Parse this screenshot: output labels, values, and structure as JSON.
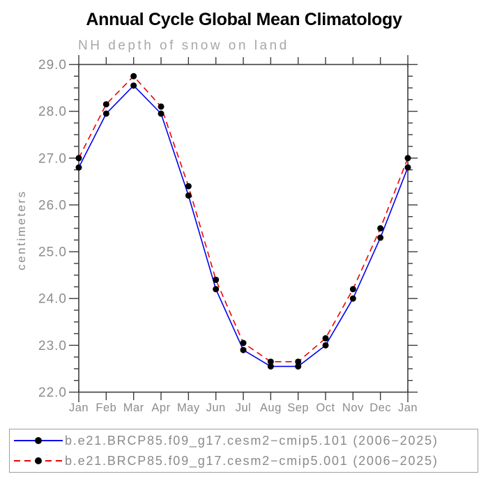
{
  "chart": {
    "title": "Annual Cycle Global Mean Climatology",
    "subtitle": "NH depth of snow on land",
    "ylabel": "centimeters"
  },
  "colors": {
    "background": "#ffffff",
    "axis": "#3c3c3c",
    "tick_label": "#8c8c8c",
    "subtitle": "#a8a8a8",
    "legend_text": "#8a8a8a",
    "legend_border": "#9e9e9e",
    "series_101": "#0000ee",
    "series_001": "#ee0000",
    "marker": "#000000"
  },
  "chart_data": {
    "type": "line",
    "title": "Annual Cycle Global Mean Climatology",
    "subtitle": "NH depth of snow on land",
    "xlabel": "",
    "ylabel": "centimeters",
    "categories": [
      "Jan",
      "Feb",
      "Mar",
      "Apr",
      "May",
      "Jun",
      "Jul",
      "Aug",
      "Sep",
      "Oct",
      "Nov",
      "Dec",
      "Jan"
    ],
    "ylim": [
      22.0,
      29.0
    ],
    "ytick_major": 1.0,
    "ytick_minor": 0.25,
    "grid": false,
    "legend_position": "bottom",
    "series": [
      {
        "name": "b.e21.BRCP85.f09_g17.cesm2−cmip5.101 (2006−2025)",
        "color": "#0000ee",
        "style": "solid",
        "marker": "filled-circle",
        "marker_color": "#000000",
        "values": [
          26.8,
          27.95,
          28.55,
          27.95,
          26.2,
          24.2,
          22.9,
          22.55,
          22.55,
          23.0,
          24.0,
          25.3,
          26.8
        ]
      },
      {
        "name": "b.e21.BRCP85.f09_g17.cesm2−cmip5.001 (2006−2025)",
        "color": "#ee0000",
        "style": "dashed",
        "marker": "filled-circle",
        "marker_color": "#000000",
        "values": [
          27.0,
          28.15,
          28.75,
          28.1,
          26.4,
          24.4,
          23.05,
          22.65,
          22.65,
          23.15,
          24.2,
          25.5,
          27.0
        ]
      }
    ]
  }
}
